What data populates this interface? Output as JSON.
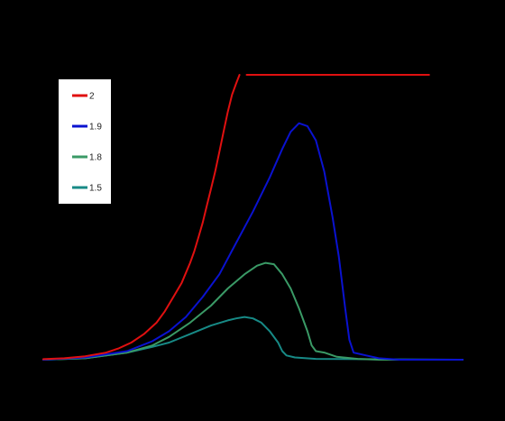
{
  "chart_data": {
    "type": "line",
    "title": "",
    "xlabel": "",
    "ylabel": "",
    "xlim": [
      0,
      100
    ],
    "ylim": [
      0,
      100
    ],
    "grid": false,
    "axes_visible": false,
    "background": "#000000",
    "legend": {
      "position": "top-left",
      "background": "#ffffff"
    },
    "series": [
      {
        "name": "2",
        "color": "#e01010",
        "segments": [
          [
            [
              0,
              0.2
            ],
            [
              5,
              0.5
            ],
            [
              10,
              1.2
            ],
            [
              15,
              2.5
            ],
            [
              18,
              4
            ],
            [
              21,
              6
            ],
            [
              24,
              9
            ],
            [
              27,
              13
            ],
            [
              29,
              17
            ],
            [
              31,
              22
            ],
            [
              33,
              27
            ],
            [
              35,
              34
            ],
            [
              36,
              38
            ],
            [
              37,
              43
            ],
            [
              38,
              48
            ],
            [
              39,
              54
            ],
            [
              40,
              60
            ],
            [
              41,
              66
            ],
            [
              42,
              73
            ],
            [
              43,
              80
            ],
            [
              44,
              87
            ],
            [
              45,
              93
            ],
            [
              46,
              97
            ],
            [
              46.8,
              100
            ]
          ],
          [
            [
              48.5,
              100
            ],
            [
              92,
              100
            ]
          ]
        ]
      },
      {
        "name": "1.9",
        "color": "#0a12d0",
        "segments": [
          [
            [
              0,
              0
            ],
            [
              10,
              0.8
            ],
            [
              20,
              3
            ],
            [
              26,
              6.5
            ],
            [
              30,
              10
            ],
            [
              34,
              15
            ],
            [
              38,
              22
            ],
            [
              42,
              30
            ],
            [
              46,
              41
            ],
            [
              50,
              52
            ],
            [
              54,
              64
            ],
            [
              57,
              74
            ],
            [
              59,
              80
            ],
            [
              61,
              83
            ],
            [
              63,
              82
            ],
            [
              65,
              77
            ],
            [
              67,
              66
            ],
            [
              69,
              50
            ],
            [
              70.5,
              36
            ],
            [
              72,
              18
            ],
            [
              73,
              7
            ],
            [
              74,
              2.5
            ],
            [
              77,
              1.5
            ],
            [
              80,
              0.5
            ],
            [
              85,
              0
            ],
            [
              100,
              0
            ]
          ]
        ]
      },
      {
        "name": "1.8",
        "color": "#3a9a66",
        "segments": [
          [
            [
              0,
              0
            ],
            [
              10,
              0.5
            ],
            [
              20,
              2.5
            ],
            [
              26,
              5
            ],
            [
              30,
              8
            ],
            [
              35,
              13
            ],
            [
              40,
              19
            ],
            [
              44,
              25
            ],
            [
              48,
              30
            ],
            [
              51,
              33
            ],
            [
              53,
              34
            ],
            [
              55,
              33.5
            ],
            [
              57,
              30
            ],
            [
              59,
              25
            ],
            [
              61,
              18
            ],
            [
              63,
              10
            ],
            [
              64,
              5
            ],
            [
              65,
              3
            ],
            [
              67,
              2.5
            ],
            [
              70,
              1
            ],
            [
              75,
              0.3
            ],
            [
              80,
              0
            ],
            [
              100,
              0
            ]
          ]
        ]
      },
      {
        "name": "1.5",
        "color": "#178a86",
        "segments": [
          [
            [
              0,
              0
            ],
            [
              10,
              0.5
            ],
            [
              20,
              2.5
            ],
            [
              26,
              4.5
            ],
            [
              30,
              6
            ],
            [
              35,
              9
            ],
            [
              40,
              12
            ],
            [
              44,
              13.8
            ],
            [
              46,
              14.5
            ],
            [
              48,
              15
            ],
            [
              50,
              14.5
            ],
            [
              52,
              13
            ],
            [
              54,
              10
            ],
            [
              56,
              6
            ],
            [
              57,
              3
            ],
            [
              58,
              1.5
            ],
            [
              60,
              0.8
            ],
            [
              65,
              0.3
            ],
            [
              100,
              0
            ]
          ]
        ]
      }
    ]
  }
}
